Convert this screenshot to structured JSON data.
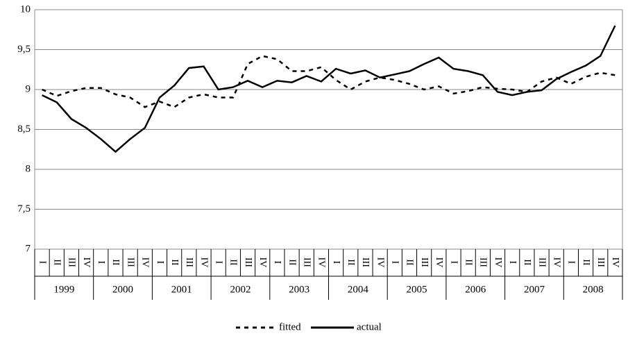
{
  "chart_data": {
    "type": "line",
    "categories": [
      "I",
      "II",
      "III",
      "IV",
      "I",
      "II",
      "III",
      "IV",
      "I",
      "II",
      "III",
      "IV",
      "I",
      "II",
      "III",
      "IV",
      "I",
      "II",
      "III",
      "IV",
      "I",
      "II",
      "III",
      "IV",
      "I",
      "II",
      "III",
      "IV",
      "I",
      "II",
      "III",
      "IV",
      "I",
      "II",
      "III",
      "IV",
      "I",
      "II",
      "III",
      "IV"
    ],
    "category_groups": [
      "1999",
      "2000",
      "2001",
      "2002",
      "2003",
      "2004",
      "2005",
      "2006",
      "2007",
      "2008"
    ],
    "series": [
      {
        "name": "fitted",
        "color": "#000000",
        "dash": true,
        "values": [
          9.0,
          8.92,
          8.98,
          9.02,
          9.02,
          8.94,
          8.9,
          8.78,
          8.85,
          8.78,
          8.9,
          8.94,
          8.9,
          8.9,
          9.32,
          9.42,
          9.38,
          9.23,
          9.23,
          9.28,
          9.12,
          9.0,
          9.1,
          9.15,
          9.12,
          9.07,
          9.0,
          9.04,
          8.95,
          8.98,
          9.03,
          9.01,
          9.0,
          8.97,
          9.1,
          9.15,
          9.07,
          9.16,
          9.21,
          9.18
        ]
      },
      {
        "name": "actual",
        "color": "#000000",
        "dash": false,
        "values": [
          8.93,
          8.84,
          8.63,
          8.52,
          8.38,
          8.22,
          8.38,
          8.52,
          8.9,
          9.05,
          9.27,
          9.29,
          9.0,
          9.03,
          9.11,
          9.03,
          9.11,
          9.09,
          9.17,
          9.1,
          9.26,
          9.2,
          9.24,
          9.15,
          9.19,
          9.23,
          9.32,
          9.4,
          9.26,
          9.23,
          9.18,
          8.97,
          8.93,
          8.97,
          8.99,
          9.13,
          9.22,
          9.3,
          9.42,
          9.8
        ]
      }
    ],
    "ylim": [
      7,
      10
    ],
    "yticks": [
      7,
      {
        "value": 7.5,
        "label": "7,5"
      },
      8,
      {
        "value": 8.5,
        "label": "8,5"
      },
      9,
      {
        "value": 9.5,
        "label": "9,5"
      },
      10
    ],
    "grid": true
  }
}
